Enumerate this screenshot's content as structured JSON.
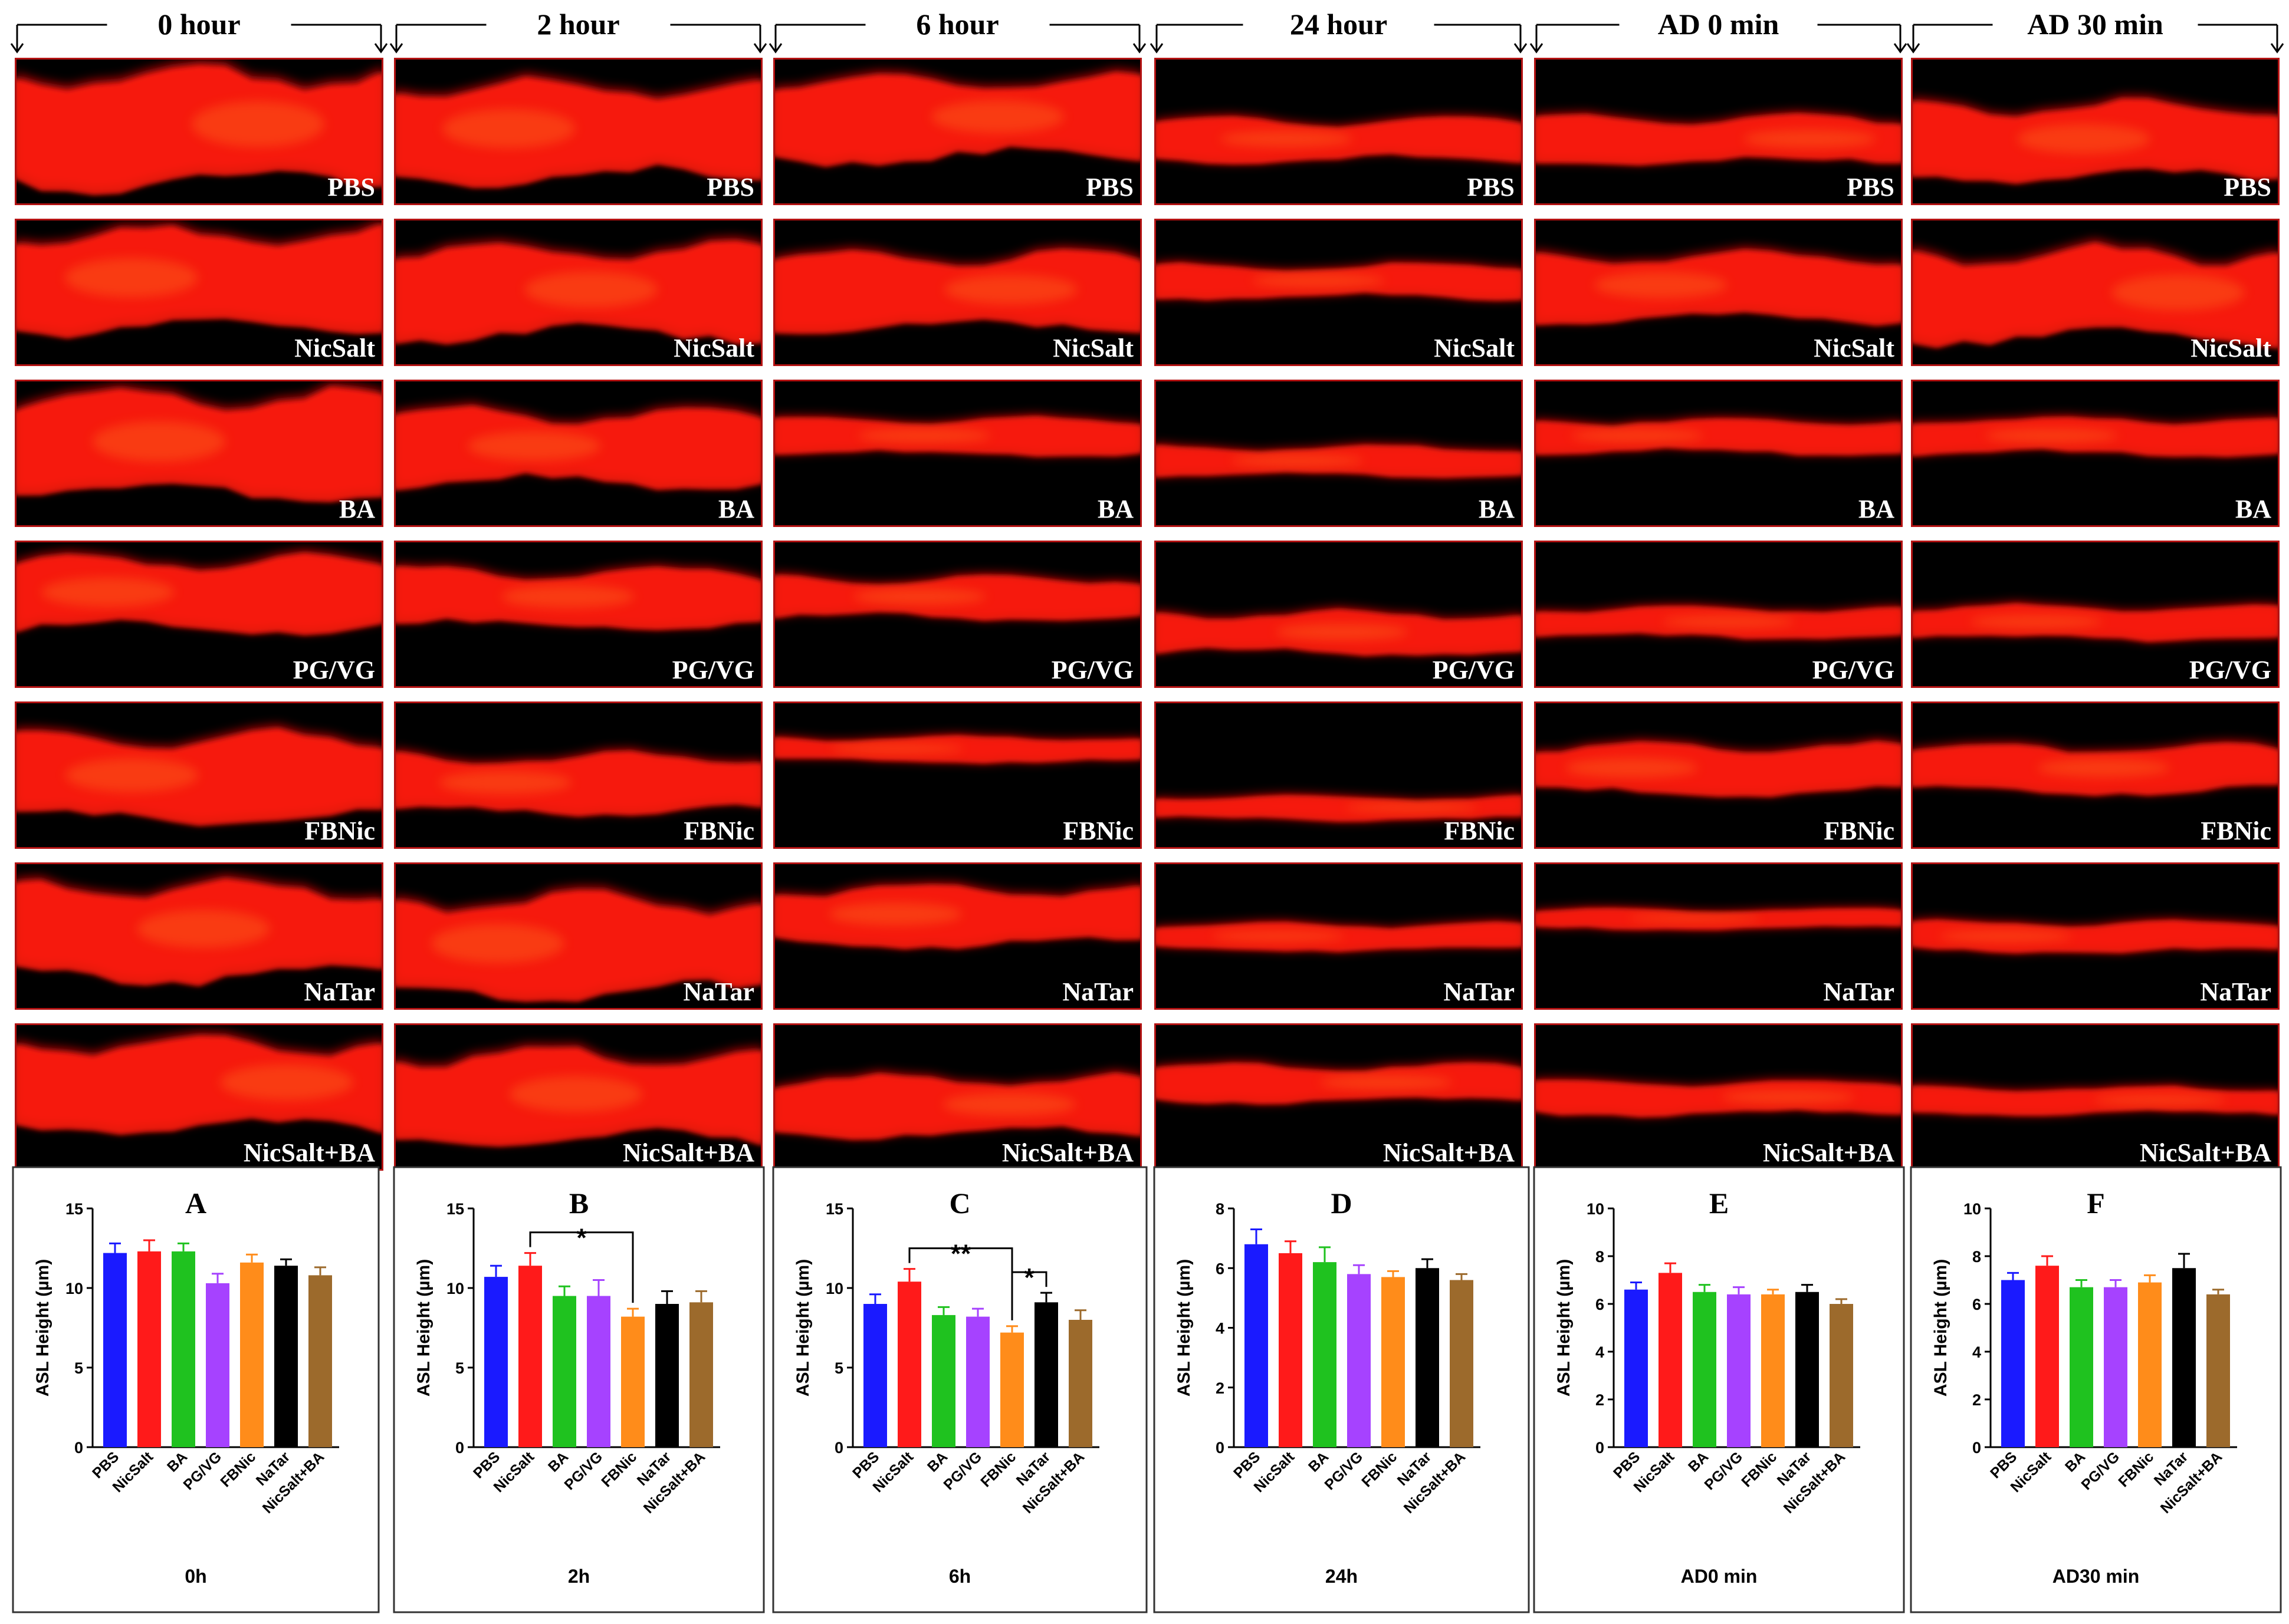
{
  "time_points": [
    "0 hour",
    "2 hour",
    "6 hour",
    "24 hour",
    "AD 0 min",
    "AD 30 min"
  ],
  "treatments": [
    "PBS",
    "NicSalt",
    "BA",
    "PG/VG",
    "FBNic",
    "NaTar",
    "NicSalt+BA"
  ],
  "colors": [
    "#1a1aff",
    "#ff1a1a",
    "#1fc21f",
    "#a642ff",
    "#ff8c1a",
    "#000000",
    "#9c6a2c"
  ],
  "image_band": {
    "description": "ASL confocal xz image tiles (red fluorescence on black)"
  },
  "chart_data": [
    {
      "type": "bar",
      "letter": "A",
      "caption": "0h",
      "ylabel": "ASL Height (µm)",
      "ylim": [
        0,
        15
      ],
      "yticks": [
        0,
        5,
        10,
        15
      ],
      "categories": [
        "PBS",
        "NicSalt",
        "BA",
        "PG/VG",
        "FBNic",
        "NaTar",
        "NicSalt+BA"
      ],
      "values": [
        12.2,
        12.3,
        12.3,
        10.3,
        11.6,
        11.4,
        10.8
      ],
      "errors": [
        0.6,
        0.7,
        0.5,
        0.6,
        0.5,
        0.4,
        0.5
      ],
      "significance": []
    },
    {
      "type": "bar",
      "letter": "B",
      "caption": "2h",
      "ylabel": "ASL Height (µm)",
      "ylim": [
        0,
        15
      ],
      "yticks": [
        0,
        5,
        10,
        15
      ],
      "categories": [
        "PBS",
        "NicSalt",
        "BA",
        "PG/VG",
        "FBNic",
        "NaTar",
        "NicSalt+BA"
      ],
      "values": [
        10.7,
        11.4,
        9.5,
        9.5,
        8.2,
        9.0,
        9.1
      ],
      "errors": [
        0.7,
        0.8,
        0.6,
        1.0,
        0.5,
        0.8,
        0.7
      ],
      "significance": [
        {
          "from": 1,
          "to": 4,
          "label": "*"
        }
      ]
    },
    {
      "type": "bar",
      "letter": "C",
      "caption": "6h",
      "ylabel": "ASL Height (µm)",
      "ylim": [
        0,
        15
      ],
      "yticks": [
        0,
        5,
        10,
        15
      ],
      "categories": [
        "PBS",
        "NicSalt",
        "BA",
        "PG/VG",
        "FBNic",
        "NaTar",
        "NicSalt+BA"
      ],
      "values": [
        9.0,
        10.4,
        8.3,
        8.2,
        7.2,
        9.1,
        8.0
      ],
      "errors": [
        0.6,
        0.8,
        0.5,
        0.5,
        0.4,
        0.6,
        0.6
      ],
      "significance": [
        {
          "from": 1,
          "to": 4,
          "label": "**"
        },
        {
          "from": 4,
          "to": 5,
          "label": "*"
        }
      ]
    },
    {
      "type": "bar",
      "letter": "D",
      "caption": "24h",
      "ylabel": "ASL Height (µm)",
      "ylim": [
        0,
        8
      ],
      "yticks": [
        0,
        2,
        4,
        6,
        8
      ],
      "categories": [
        "PBS",
        "NicSalt",
        "BA",
        "PG/VG",
        "FBNic",
        "NaTar",
        "NicSalt+BA"
      ],
      "values": [
        6.8,
        6.5,
        6.2,
        5.8,
        5.7,
        6.0,
        5.6
      ],
      "errors": [
        0.5,
        0.4,
        0.5,
        0.3,
        0.2,
        0.3,
        0.2
      ],
      "significance": []
    },
    {
      "type": "bar",
      "letter": "E",
      "caption": "AD0 min",
      "ylabel": "ASL Height (µm)",
      "ylim": [
        0,
        10
      ],
      "yticks": [
        0,
        2,
        4,
        6,
        8,
        10
      ],
      "categories": [
        "PBS",
        "NicSalt",
        "BA",
        "PG/VG",
        "FBNic",
        "NaTar",
        "NicSalt+BA"
      ],
      "values": [
        6.6,
        7.3,
        6.5,
        6.4,
        6.4,
        6.5,
        6.0
      ],
      "errors": [
        0.3,
        0.4,
        0.3,
        0.3,
        0.2,
        0.3,
        0.2
      ],
      "significance": []
    },
    {
      "type": "bar",
      "letter": "F",
      "caption": "AD30 min",
      "ylabel": "ASL Height (µm)",
      "ylim": [
        0,
        10
      ],
      "yticks": [
        0,
        2,
        4,
        6,
        8,
        10
      ],
      "categories": [
        "PBS",
        "NicSalt",
        "BA",
        "PG/VG",
        "FBNic",
        "NaTar",
        "NicSalt+BA"
      ],
      "values": [
        7.0,
        7.6,
        6.7,
        6.7,
        6.9,
        7.5,
        6.4
      ],
      "errors": [
        0.3,
        0.4,
        0.3,
        0.3,
        0.3,
        0.6,
        0.2
      ],
      "significance": []
    }
  ]
}
